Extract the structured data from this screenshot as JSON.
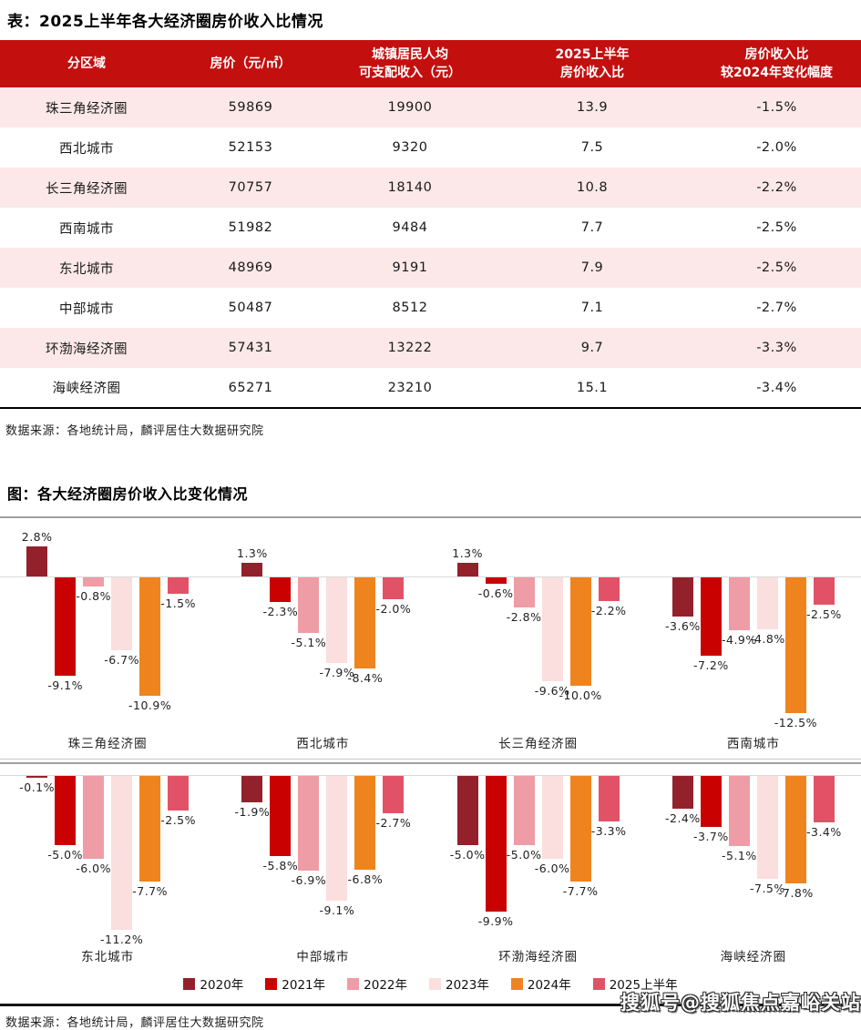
{
  "page": {
    "table_title": "表：2025上半年各大经济圈房价收入比情况",
    "table_source": "数据来源：各地统计局，麟评居住大数据研究院",
    "figure_title": "图：各大经济圈房价收入比变化情况",
    "figure_source": "数据来源：各地统计局，麟评居住大数据研究院",
    "watermark": "搜狐号@搜狐焦点嘉峪关站"
  },
  "colors": {
    "header_bg": "#C40F0F",
    "row_alt_bg": "#FCE8E8",
    "series": [
      "#93212B",
      "#C90101",
      "#EE9CA5",
      "#FBDEDE",
      "#EF841F",
      "#E25266"
    ]
  },
  "table": {
    "columns": [
      "分区域",
      "房价（元/㎡）",
      "城镇居民人均可支配收入（元）",
      "2025上半年房价收入比",
      "房价收入比较2024年变化幅度"
    ],
    "columns_lines": [
      [
        "分区域"
      ],
      [
        "房价（元/㎡）"
      ],
      [
        "城镇居民人均",
        "可支配收入（元）"
      ],
      [
        "2025上半年",
        "房价收入比"
      ],
      [
        "房价收入比",
        "较2024年变化幅度"
      ]
    ],
    "rows": [
      [
        "珠三角经济圈",
        "59869",
        "19900",
        "13.9",
        "-1.5%"
      ],
      [
        "西北城市",
        "52153",
        "9320",
        "7.5",
        "-2.0%"
      ],
      [
        "长三角经济圈",
        "70757",
        "18140",
        "10.8",
        "-2.2%"
      ],
      [
        "西南城市",
        "51982",
        "9484",
        "7.7",
        "-2.5%"
      ],
      [
        "东北城市",
        "48969",
        "9191",
        "7.9",
        "-2.5%"
      ],
      [
        "中部城市",
        "50487",
        "8512",
        "7.1",
        "-2.7%"
      ],
      [
        "环渤海经济圈",
        "57431",
        "13222",
        "9.7",
        "-3.3%"
      ],
      [
        "海峡经济圈",
        "65271",
        "23210",
        "15.1",
        "-3.4%"
      ]
    ]
  },
  "legend": [
    "2020年",
    "2021年",
    "2022年",
    "2023年",
    "2024年",
    "2025上半年"
  ],
  "chart_data": [
    {
      "type": "table",
      "title": "表：2025上半年各大经济圈房价收入比情况",
      "columns": [
        "分区域",
        "房价（元/㎡）",
        "城镇居民人均可支配收入（元）",
        "2025上半年房价收入比",
        "房价收入比较2024年变化幅度"
      ],
      "rows": [
        [
          "珠三角经济圈",
          59869,
          19900,
          13.9,
          "-1.5%"
        ],
        [
          "西北城市",
          52153,
          9320,
          7.5,
          "-2.0%"
        ],
        [
          "长三角经济圈",
          70757,
          18140,
          10.8,
          "-2.2%"
        ],
        [
          "西南城市",
          51982,
          9484,
          7.7,
          "-2.5%"
        ],
        [
          "东北城市",
          48969,
          9191,
          7.9,
          "-2.5%"
        ],
        [
          "中部城市",
          50487,
          8512,
          7.1,
          "-2.7%"
        ],
        [
          "环渤海经济圈",
          57431,
          13222,
          9.7,
          "-3.3%"
        ],
        [
          "海峡经济圈",
          65271,
          23210,
          15.1,
          "-3.4%"
        ]
      ]
    },
    {
      "type": "bar",
      "title": "图：各大经济圈房价收入比变化情况",
      "unit": "%",
      "categories": [
        "2020年",
        "2021年",
        "2022年",
        "2023年",
        "2024年",
        "2025上半年"
      ],
      "legend_position": "bottom",
      "grid": false,
      "charts": [
        {
          "region": "珠三角经济圈",
          "values": [
            2.8,
            -9.1,
            -0.8,
            -6.7,
            -10.9,
            -1.5
          ]
        },
        {
          "region": "西北城市",
          "values": [
            1.3,
            -2.3,
            -5.1,
            -7.9,
            -8.4,
            -2.0
          ]
        },
        {
          "region": "长三角经济圈",
          "values": [
            1.3,
            -0.6,
            -2.8,
            -9.6,
            -10.0,
            -2.2
          ]
        },
        {
          "region": "西南城市",
          "values": [
            -3.6,
            -7.2,
            -4.9,
            -4.8,
            -12.5,
            -2.5
          ]
        },
        {
          "region": "东北城市",
          "values": [
            -0.1,
            -5.0,
            -6.0,
            -11.2,
            -7.7,
            -2.5
          ]
        },
        {
          "region": "中部城市",
          "values": [
            -1.9,
            -5.8,
            -6.9,
            -9.1,
            -6.8,
            -2.7
          ]
        },
        {
          "region": "环渤海经济圈",
          "values": [
            -5.0,
            -9.9,
            -5.0,
            -6.0,
            -7.7,
            -3.3
          ]
        },
        {
          "region": "海峡经济圈",
          "values": [
            -2.4,
            -3.7,
            -5.1,
            -7.5,
            -7.8,
            -3.4
          ]
        }
      ]
    }
  ]
}
